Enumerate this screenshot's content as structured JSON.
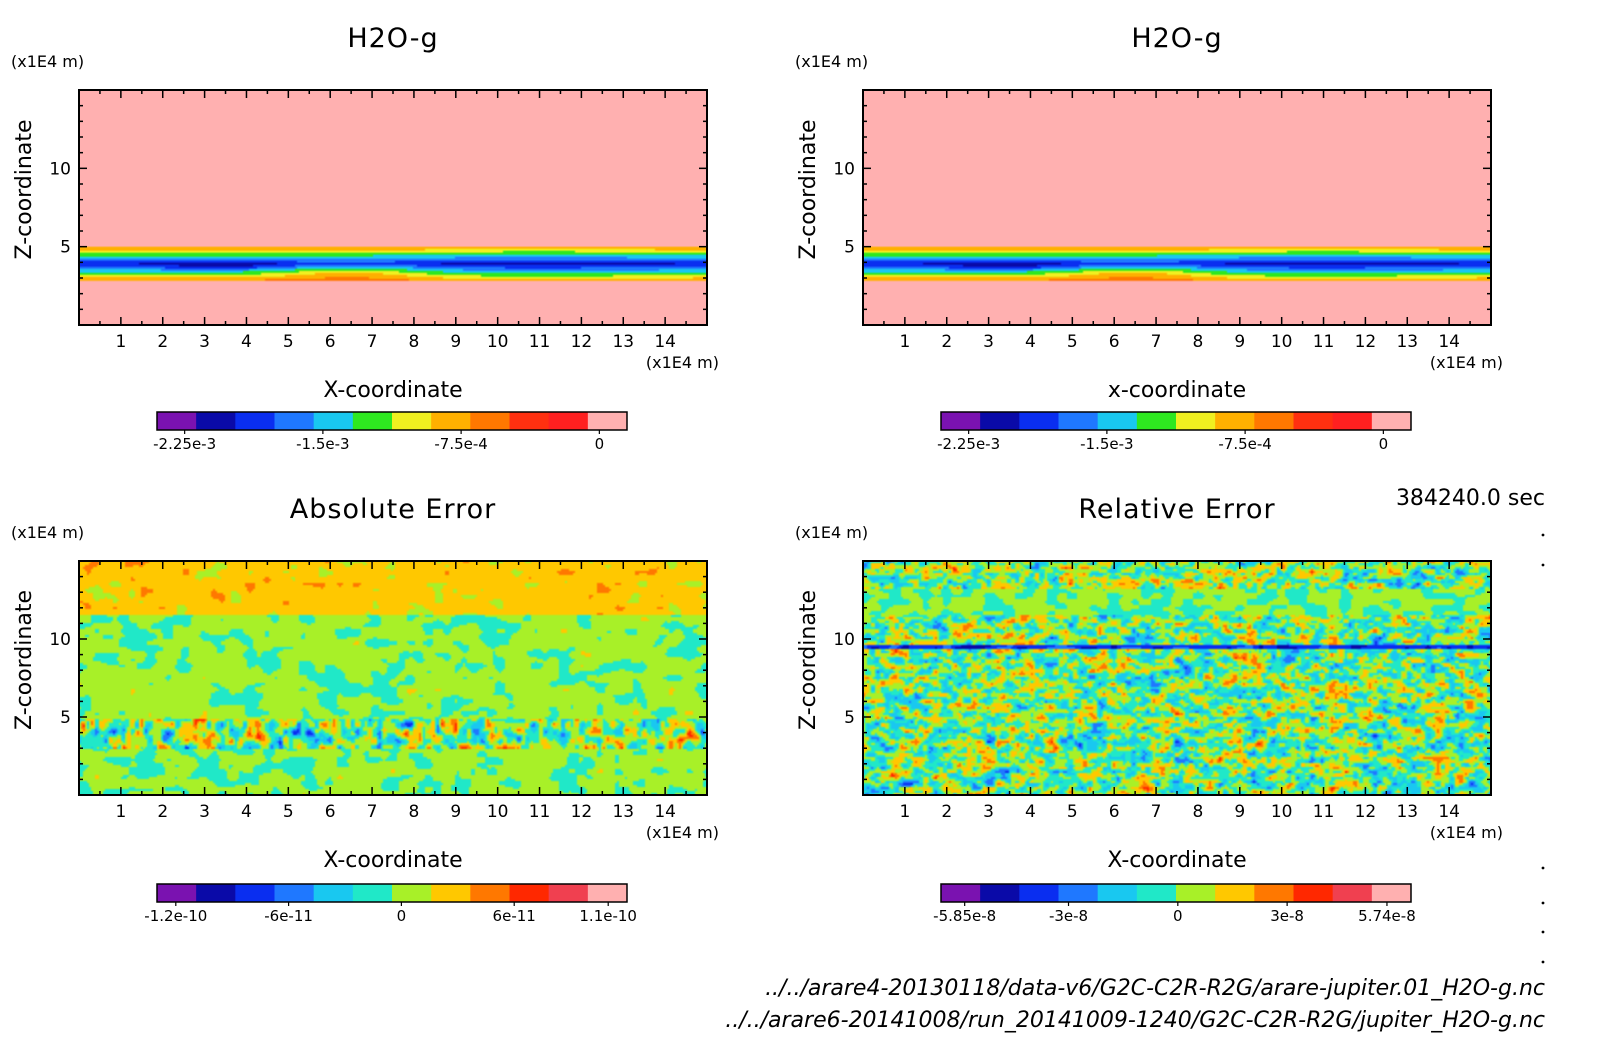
{
  "footer": {
    "time": "384240.0 sec",
    "file1": "../../arare4-20130118/data-v6/G2C-C2R-R2G/arare-jupiter.01_H2O-g.nc",
    "file2": "../../arare6-20141008/run_20141009-1240/G2C-C2R-R2G/jupiter_H2O-g.nc"
  },
  "chart_data": [
    {
      "type": "heatmap",
      "title": "H2O-g",
      "xlabel": "X-coordinate",
      "ylabel": "Z-coordinate",
      "x_unit": "(x1E4 m)",
      "y_unit": "(x1E4 m)",
      "xlim": [
        0,
        15
      ],
      "ylim": [
        0,
        15
      ],
      "x_ticks": [
        1,
        2,
        3,
        4,
        5,
        6,
        7,
        8,
        9,
        10,
        11,
        12,
        13,
        14
      ],
      "y_ticks": [
        5,
        10
      ],
      "pattern": "h2o",
      "colorbar": {
        "min": -0.0024,
        "max": 0.00015,
        "colors": [
          "#7a12b0",
          "#0a0aa8",
          "#0a2ef0",
          "#1f78ff",
          "#19c8f0",
          "#2ee820",
          "#f0f020",
          "#ffb000",
          "#ff7800",
          "#ff3010",
          "#ff2020",
          "#ffb0b0"
        ],
        "tick_labels": [
          "-2.25e-3",
          "-1.5e-3",
          "-7.5e-4",
          "0"
        ],
        "tick_values": [
          -0.00225,
          -0.0015,
          -0.00075,
          0
        ]
      }
    },
    {
      "type": "heatmap",
      "title": "H2O-g",
      "xlabel": "x-coordinate",
      "ylabel": "Z-coordinate",
      "x_unit": "(x1E4 m)",
      "y_unit": "(x1E4 m)",
      "xlim": [
        0,
        15
      ],
      "ylim": [
        0,
        15
      ],
      "x_ticks": [
        1,
        2,
        3,
        4,
        5,
        6,
        7,
        8,
        9,
        10,
        11,
        12,
        13,
        14
      ],
      "y_ticks": [
        5,
        10
      ],
      "pattern": "h2o",
      "colorbar": {
        "min": -0.0024,
        "max": 0.00015,
        "colors": [
          "#7a12b0",
          "#0a0aa8",
          "#0a2ef0",
          "#1f78ff",
          "#19c8f0",
          "#2ee820",
          "#f0f020",
          "#ffb000",
          "#ff7800",
          "#ff3010",
          "#ff2020",
          "#ffb0b0"
        ],
        "tick_labels": [
          "-2.25e-3",
          "-1.5e-3",
          "-7.5e-4",
          "0"
        ],
        "tick_values": [
          -0.00225,
          -0.0015,
          -0.00075,
          0
        ]
      }
    },
    {
      "type": "heatmap",
      "title": "Absolute Error",
      "xlabel": "X-coordinate",
      "ylabel": "Z-coordinate",
      "x_unit": "(x1E4 m)",
      "y_unit": "(x1E4 m)",
      "xlim": [
        0,
        15
      ],
      "ylim": [
        0,
        15
      ],
      "x_ticks": [
        1,
        2,
        3,
        4,
        5,
        6,
        7,
        8,
        9,
        10,
        11,
        12,
        13,
        14
      ],
      "y_ticks": [
        5,
        10
      ],
      "pattern": "abs",
      "colorbar": {
        "min": -1.3e-10,
        "max": 1.2e-10,
        "colors": [
          "#7a12b0",
          "#0a0aa8",
          "#0a2ef0",
          "#1f78ff",
          "#19c8f0",
          "#20e8c8",
          "#a8f028",
          "#ffc800",
          "#ff7800",
          "#ff2800",
          "#f04050",
          "#ffb0b0"
        ],
        "tick_labels": [
          "-1.2e-10",
          "-6e-11",
          "0",
          "6e-11",
          "1.1e-10"
        ],
        "tick_values": [
          -1.2e-10,
          -6e-11,
          0,
          6e-11,
          1.1e-10
        ]
      }
    },
    {
      "type": "heatmap",
      "title": "Relative Error",
      "xlabel": "X-coordinate",
      "ylabel": "Z-coordinate",
      "x_unit": "(x1E4 m)",
      "y_unit": "(x1E4 m)",
      "xlim": [
        0,
        15
      ],
      "ylim": [
        0,
        15
      ],
      "x_ticks": [
        1,
        2,
        3,
        4,
        5,
        6,
        7,
        8,
        9,
        10,
        11,
        12,
        13,
        14
      ],
      "y_ticks": [
        5,
        10
      ],
      "pattern": "rel",
      "colorbar": {
        "min": -6.5e-08,
        "max": 6.4e-08,
        "colors": [
          "#7a12b0",
          "#0a0aa8",
          "#0a2ef0",
          "#1f78ff",
          "#19c8f0",
          "#20e8c8",
          "#a8f028",
          "#ffc800",
          "#ff7800",
          "#ff2800",
          "#f04050",
          "#ffb0b0"
        ],
        "tick_labels": [
          "-5.85e-8",
          "-3e-8",
          "0",
          "3e-8",
          "5.74e-8"
        ],
        "tick_values": [
          -5.85e-08,
          -3e-08,
          0,
          3e-08,
          5.74e-08
        ]
      }
    }
  ]
}
